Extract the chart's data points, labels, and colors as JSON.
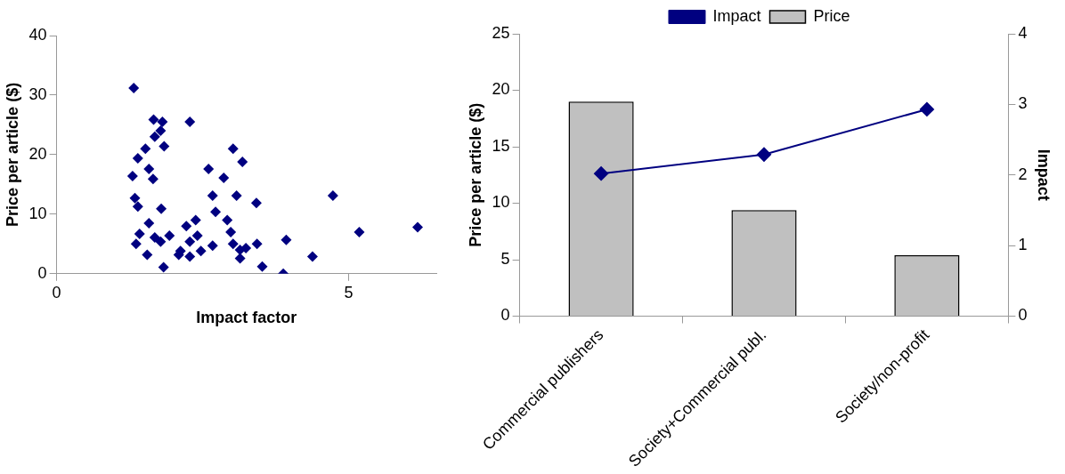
{
  "chart_data": [
    {
      "type": "scatter",
      "xlabel": "Impact factor",
      "ylabel": "Price per article ($)",
      "xlim": [
        0,
        6.5
      ],
      "xticks": [
        0,
        5
      ],
      "ylim": [
        0,
        40
      ],
      "yticks": [
        0,
        10,
        20,
        30,
        40
      ],
      "grid": false,
      "legend": false,
      "marker": "diamond",
      "series": [
        {
          "color": "#000080",
          "x": [
            1.32,
            1.66,
            1.81,
            2.28,
            1.78,
            1.68,
            1.84,
            1.52,
            1.39,
            3.02,
            3.18,
            1.58,
            2.6,
            1.3,
            1.65,
            2.86,
            2.67,
            3.08,
            4.73,
            1.34,
            3.42,
            1.39,
            1.79,
            2.72,
            2.92,
            2.38,
            1.58,
            2.22,
            2.98,
            1.42,
            1.68,
            1.93,
            2.41,
            2.67,
            1.36,
            1.78,
            2.28,
            3.02,
            3.43,
            3.14,
            3.93,
            5.18,
            6.18,
            2.09,
            2.28,
            2.47,
            1.55,
            3.14,
            4.38,
            3.52,
            1.83,
            3.88,
            2.12,
            3.24
          ],
          "values": [
            31.2,
            25.9,
            25.5,
            25.5,
            24.0,
            23.0,
            21.4,
            21.0,
            19.4,
            21.0,
            18.8,
            17.6,
            17.6,
            16.4,
            15.9,
            16.1,
            13.1,
            13.1,
            13.1,
            12.7,
            11.9,
            11.3,
            10.9,
            10.4,
            9.0,
            9.0,
            8.5,
            8.0,
            7.0,
            6.7,
            6.1,
            6.4,
            6.4,
            4.7,
            5.0,
            5.4,
            5.4,
            5.0,
            5.0,
            4.0,
            5.7,
            7.0,
            7.8,
            3.2,
            2.9,
            3.8,
            3.2,
            2.6,
            2.9,
            1.2,
            1.1,
            0.0,
            3.8,
            4.3
          ]
        }
      ]
    },
    {
      "type": "bar",
      "ylabel": "Price per article ($)",
      "y2label": "Impact",
      "categories": [
        "Commercial publishers",
        "Society+Commercial publ.",
        "Society/non-profit"
      ],
      "ylim": [
        0,
        25
      ],
      "yticks": [
        0,
        5,
        10,
        15,
        20,
        25
      ],
      "y2lim": [
        0,
        4
      ],
      "y2ticks": [
        0,
        1,
        2,
        3,
        4
      ],
      "grid": false,
      "legend": "top",
      "series": [
        {
          "name": "Price",
          "type": "bar",
          "color": "#c0c0c0",
          "values": [
            19.0,
            9.4,
            5.4
          ]
        },
        {
          "name": "Impact",
          "type": "line",
          "axis": "y2",
          "color": "#000080",
          "marker": "diamond",
          "values": [
            2.02,
            2.29,
            2.93
          ]
        }
      ]
    }
  ]
}
